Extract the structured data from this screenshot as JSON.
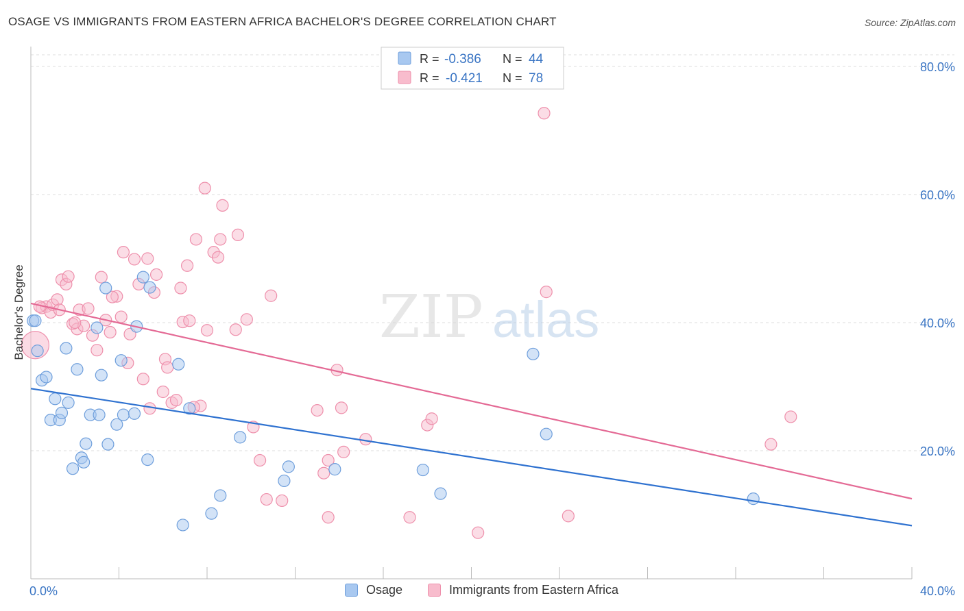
{
  "title": "OSAGE VS IMMIGRANTS FROM EASTERN AFRICA BACHELOR'S DEGREE CORRELATION CHART",
  "source": "Source: ZipAtlas.com",
  "colors": {
    "blue_fill": "#a8c8f0",
    "blue_stroke": "#6f9fdc",
    "blue_line": "#2f72d0",
    "pink_fill": "#f8bccd",
    "pink_stroke": "#ee8fab",
    "pink_line": "#e46a95",
    "axis_text": "#3a75c4",
    "grid": "#dddddd"
  },
  "stats": [
    {
      "r_label": "R =",
      "r_value": "-0.386",
      "n_label": "N =",
      "n_value": "44"
    },
    {
      "r_label": "R =",
      "r_value": "-0.421",
      "n_label": "N =",
      "n_value": "78"
    }
  ],
  "watermark": {
    "zip": "ZIP",
    "atlas": "atlas"
  },
  "chart_data": {
    "type": "scatter",
    "title": "OSAGE VS IMMIGRANTS FROM EASTERN AFRICA BACHELOR'S DEGREE CORRELATION CHART",
    "xlabel": "",
    "ylabel": "Bachelor's Degree",
    "xlim": [
      0,
      40
    ],
    "ylim": [
      0,
      80
    ],
    "x_tick_labels": [
      "0.0%",
      "40.0%"
    ],
    "y_ticks": [
      20,
      40,
      60,
      80
    ],
    "y_tick_labels": [
      "20.0%",
      "40.0%",
      "60.0%",
      "80.0%"
    ],
    "grid": true,
    "legend": "bottom",
    "series": [
      {
        "name": "Osage",
        "color": "#a8c8f0",
        "r": -0.386,
        "n": 44,
        "trend": {
          "x": [
            0,
            40
          ],
          "y": [
            29.7,
            8.3
          ]
        },
        "points": [
          [
            0.1,
            40.3
          ],
          [
            0.3,
            35.6
          ],
          [
            0.5,
            31.0
          ],
          [
            0.7,
            31.5
          ],
          [
            1.1,
            28.1
          ],
          [
            0.9,
            24.8
          ],
          [
            1.3,
            24.8
          ],
          [
            1.4,
            25.9
          ],
          [
            1.6,
            36.0
          ],
          [
            1.7,
            27.5
          ],
          [
            1.9,
            17.2
          ],
          [
            2.1,
            32.7
          ],
          [
            2.3,
            18.9
          ],
          [
            2.4,
            18.2
          ],
          [
            2.5,
            21.1
          ],
          [
            2.7,
            25.6
          ],
          [
            3.0,
            39.2
          ],
          [
            3.1,
            25.6
          ],
          [
            3.2,
            31.8
          ],
          [
            3.4,
            45.4
          ],
          [
            3.5,
            21.0
          ],
          [
            3.9,
            24.1
          ],
          [
            4.1,
            34.1
          ],
          [
            4.2,
            25.6
          ],
          [
            4.7,
            25.8
          ],
          [
            4.8,
            39.4
          ],
          [
            5.1,
            47.1
          ],
          [
            5.3,
            18.6
          ],
          [
            5.4,
            45.5
          ],
          [
            6.7,
            33.5
          ],
          [
            6.9,
            8.4
          ],
          [
            7.2,
            26.6
          ],
          [
            8.2,
            10.2
          ],
          [
            8.6,
            13.0
          ],
          [
            9.5,
            22.1
          ],
          [
            11.5,
            15.3
          ],
          [
            11.7,
            17.5
          ],
          [
            13.8,
            17.1
          ],
          [
            17.8,
            17.0
          ],
          [
            18.6,
            13.3
          ],
          [
            22.8,
            35.1
          ],
          [
            23.4,
            22.6
          ],
          [
            32.8,
            12.5
          ],
          [
            0.2,
            40.3
          ]
        ]
      },
      {
        "name": "Immigrants from Eastern Africa",
        "color": "#f8bccd",
        "r": -0.421,
        "n": 78,
        "trend": {
          "x": [
            0,
            40
          ],
          "y": [
            43.0,
            12.5
          ]
        },
        "points": [
          [
            0.2,
            36.5
          ],
          [
            0.5,
            42.3
          ],
          [
            0.7,
            42.5
          ],
          [
            0.9,
            41.6
          ],
          [
            1.0,
            42.8
          ],
          [
            1.2,
            43.6
          ],
          [
            1.4,
            46.7
          ],
          [
            1.6,
            46.0
          ],
          [
            1.7,
            47.2
          ],
          [
            1.9,
            39.8
          ],
          [
            2.1,
            39.0
          ],
          [
            2.2,
            42.0
          ],
          [
            2.4,
            39.5
          ],
          [
            2.6,
            42.2
          ],
          [
            2.8,
            38.0
          ],
          [
            3.0,
            35.7
          ],
          [
            3.2,
            47.1
          ],
          [
            3.4,
            40.4
          ],
          [
            3.6,
            38.5
          ],
          [
            3.9,
            44.1
          ],
          [
            4.1,
            40.9
          ],
          [
            4.2,
            51.0
          ],
          [
            4.4,
            33.7
          ],
          [
            4.5,
            38.2
          ],
          [
            4.7,
            49.9
          ],
          [
            4.9,
            46.0
          ],
          [
            5.1,
            31.2
          ],
          [
            5.3,
            50.0
          ],
          [
            5.4,
            26.6
          ],
          [
            5.6,
            44.7
          ],
          [
            5.7,
            47.5
          ],
          [
            6.0,
            29.2
          ],
          [
            6.1,
            34.3
          ],
          [
            6.4,
            27.5
          ],
          [
            6.6,
            27.9
          ],
          [
            6.8,
            45.4
          ],
          [
            6.9,
            40.1
          ],
          [
            7.1,
            48.9
          ],
          [
            7.2,
            40.3
          ],
          [
            7.5,
            53.0
          ],
          [
            7.7,
            27.0
          ],
          [
            7.9,
            61.0
          ],
          [
            8.0,
            38.8
          ],
          [
            8.3,
            51.0
          ],
          [
            8.5,
            50.2
          ],
          [
            8.6,
            53.0
          ],
          [
            8.7,
            58.3
          ],
          [
            9.4,
            53.7
          ],
          [
            9.3,
            38.9
          ],
          [
            9.8,
            40.5
          ],
          [
            10.1,
            23.7
          ],
          [
            10.4,
            18.5
          ],
          [
            10.7,
            12.4
          ],
          [
            10.9,
            44.2
          ],
          [
            11.4,
            12.2
          ],
          [
            13.0,
            26.3
          ],
          [
            13.3,
            16.5
          ],
          [
            13.5,
            18.5
          ],
          [
            13.5,
            9.6
          ],
          [
            13.9,
            32.6
          ],
          [
            14.1,
            26.7
          ],
          [
            14.2,
            19.8
          ],
          [
            15.2,
            21.8
          ],
          [
            17.2,
            9.6
          ],
          [
            18.0,
            24.0
          ],
          [
            18.2,
            25.0
          ],
          [
            20.3,
            7.2
          ],
          [
            23.3,
            72.7
          ],
          [
            23.4,
            44.8
          ],
          [
            24.4,
            9.8
          ],
          [
            33.6,
            21.0
          ],
          [
            34.5,
            25.3
          ],
          [
            0.4,
            42.5
          ],
          [
            1.3,
            42.0
          ],
          [
            2.0,
            40.0
          ],
          [
            3.7,
            44.0
          ],
          [
            6.2,
            33.0
          ],
          [
            7.4,
            26.8
          ]
        ]
      }
    ]
  }
}
